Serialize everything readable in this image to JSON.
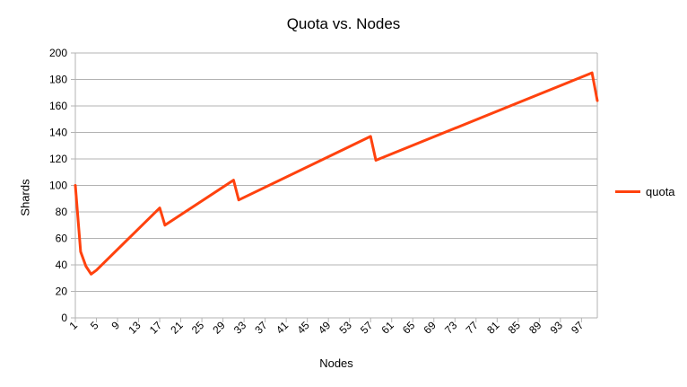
{
  "chart_data": {
    "type": "line",
    "title": "Quota vs. Nodes",
    "xlabel": "Nodes",
    "ylabel": "Shards",
    "ylim": [
      0,
      200
    ],
    "yticks": [
      0,
      20,
      40,
      60,
      80,
      100,
      120,
      140,
      160,
      180,
      200
    ],
    "xlim": [
      1,
      100
    ],
    "xticks": [
      1,
      5,
      9,
      13,
      17,
      21,
      25,
      29,
      33,
      37,
      41,
      45,
      49,
      53,
      57,
      61,
      65,
      69,
      73,
      77,
      81,
      85,
      89,
      93,
      97
    ],
    "grid": "horizontal",
    "legend_position": "right",
    "series_color": "#ff420e",
    "series": [
      {
        "name": "quota",
        "points": [
          [
            1,
            100
          ],
          [
            2,
            50
          ],
          [
            3,
            39
          ],
          [
            4,
            33
          ],
          [
            5,
            36
          ],
          [
            17,
            83
          ],
          [
            18,
            70
          ],
          [
            31,
            104
          ],
          [
            32,
            89
          ],
          [
            57,
            137
          ],
          [
            58,
            119
          ],
          [
            99,
            185
          ],
          [
            100,
            164
          ]
        ]
      }
    ]
  }
}
